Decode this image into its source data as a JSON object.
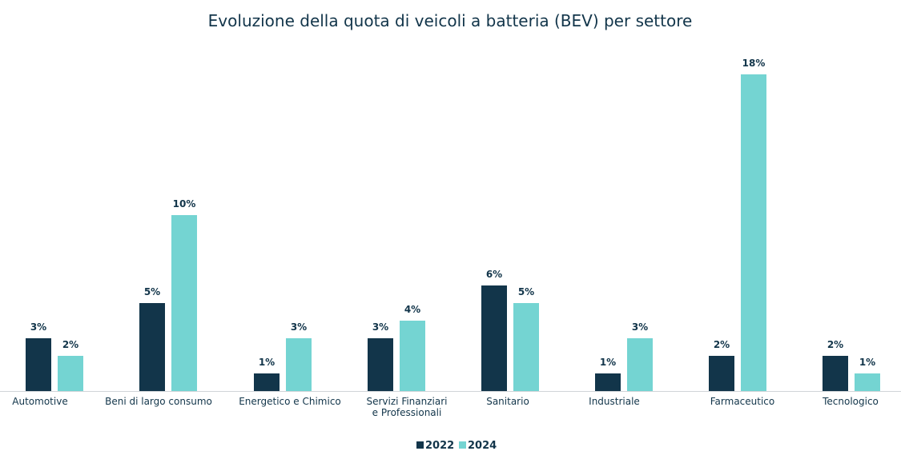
{
  "chart_data": {
    "type": "bar",
    "title": "Evoluzione della quota di veicoli a batteria (BEV) per settore",
    "xlabel": "",
    "ylabel": "",
    "categories": [
      [
        "Automotive"
      ],
      [
        "Beni di largo consumo"
      ],
      [
        "Energetico e Chimico"
      ],
      [
        "Servizi Finanziari",
        "e Professionali"
      ],
      [
        "Sanitario"
      ],
      [
        "Industriale"
      ],
      [
        "Farmaceutico"
      ],
      [
        "Tecnologico"
      ]
    ],
    "series": [
      {
        "name": "2022",
        "color": "#12354a",
        "values": [
          3,
          5,
          1,
          3,
          6,
          1,
          2,
          2
        ],
        "labels": [
          "3%",
          "5%",
          "1%",
          "3%",
          "6%",
          "1%",
          "2%",
          "2%"
        ]
      },
      {
        "name": "2024",
        "color": "#74d4d2",
        "values": [
          2,
          10,
          3,
          4,
          5,
          3,
          18,
          1
        ],
        "labels": [
          "2%",
          "10%",
          "3%",
          "4%",
          "5%",
          "3%",
          "18%",
          "1%"
        ]
      }
    ],
    "grid": false,
    "legend": "bottom-center"
  }
}
